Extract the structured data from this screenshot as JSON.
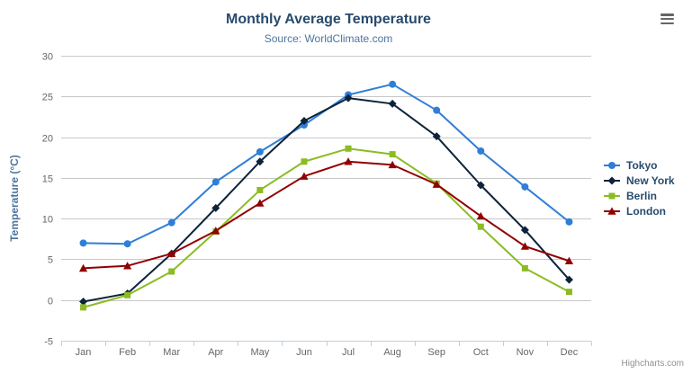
{
  "chart_data": {
    "type": "line",
    "title": "Monthly Average Temperature",
    "subtitle": "Source: WorldClimate.com",
    "xlabel": "",
    "ylabel": "Temperature (°C)",
    "ylim": [
      -5,
      30
    ],
    "yticks": [
      -5,
      0,
      5,
      10,
      15,
      20,
      25,
      30
    ],
    "grid": "horizontal",
    "legend_position": "right",
    "categories": [
      "Jan",
      "Feb",
      "Mar",
      "Apr",
      "May",
      "Jun",
      "Jul",
      "Aug",
      "Sep",
      "Oct",
      "Nov",
      "Dec"
    ],
    "series": [
      {
        "name": "Tokyo",
        "color": "#2f7ed8",
        "marker": "circle",
        "values": [
          7.0,
          6.9,
          9.5,
          14.5,
          18.2,
          21.5,
          25.2,
          26.5,
          23.3,
          18.3,
          13.9,
          9.6
        ]
      },
      {
        "name": "New York",
        "color": "#0d233a",
        "marker": "diamond",
        "values": [
          -0.2,
          0.8,
          5.7,
          11.3,
          17.0,
          22.0,
          24.8,
          24.1,
          20.1,
          14.1,
          8.6,
          2.5
        ]
      },
      {
        "name": "Berlin",
        "color": "#8bbc21",
        "marker": "square",
        "values": [
          -0.9,
          0.6,
          3.5,
          8.4,
          13.5,
          17.0,
          18.6,
          17.9,
          14.3,
          9.0,
          3.9,
          1.0
        ]
      },
      {
        "name": "London",
        "color": "#910000",
        "marker": "triangle",
        "values": [
          3.9,
          4.2,
          5.7,
          8.5,
          11.9,
          15.2,
          17.0,
          16.6,
          14.2,
          10.3,
          6.6,
          4.8
        ]
      }
    ],
    "colors": {
      "title": "#274b6d",
      "subtitle": "#4d759e",
      "axis_title": "#4d759e",
      "tick_text": "#666666",
      "grid_line": "#c8c8c8",
      "axis_line": "#c0d0e0",
      "legend_text": "#274b6d",
      "credits_text": "#909090",
      "menu_icon": "#666666"
    },
    "credits": "Highcharts.com"
  }
}
